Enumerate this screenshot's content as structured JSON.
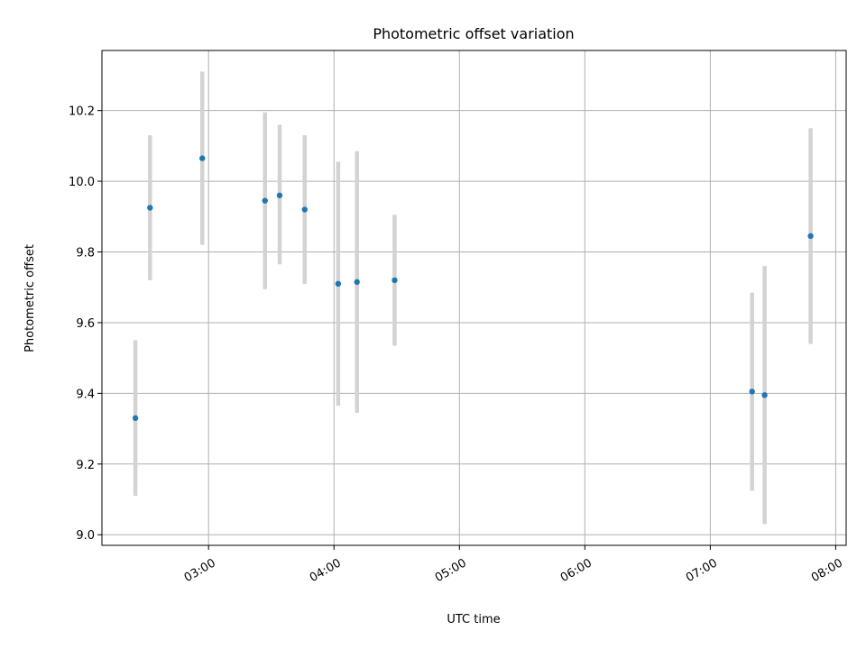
{
  "chart_data": {
    "type": "scatter",
    "title": "Photometric offset variation",
    "xlabel": "UTC time",
    "ylabel": "Photometric offset",
    "x_unit": "hh:mm",
    "xlim": [
      "02:09",
      "08:05"
    ],
    "ylim": [
      8.97,
      10.37
    ],
    "x_ticks": [
      "03:00",
      "04:00",
      "05:00",
      "06:00",
      "07:00",
      "08:00"
    ],
    "y_ticks": [
      "9.0",
      "9.2",
      "9.4",
      "9.6",
      "9.8",
      "10.0",
      "10.2"
    ],
    "grid": true,
    "marker_color": "#1f77b4",
    "errorbar_color": "#d3d3d3",
    "points": [
      {
        "x": "02:25",
        "y": 9.33,
        "ylow": 9.11,
        "yhigh": 9.55
      },
      {
        "x": "02:32",
        "y": 9.925,
        "ylow": 9.72,
        "yhigh": 10.13
      },
      {
        "x": "02:57",
        "y": 10.065,
        "ylow": 9.82,
        "yhigh": 10.31
      },
      {
        "x": "03:27",
        "y": 9.945,
        "ylow": 9.695,
        "yhigh": 10.195
      },
      {
        "x": "03:34",
        "y": 9.96,
        "ylow": 9.765,
        "yhigh": 10.16
      },
      {
        "x": "03:46",
        "y": 9.92,
        "ylow": 9.71,
        "yhigh": 10.13
      },
      {
        "x": "04:02",
        "y": 9.71,
        "ylow": 9.365,
        "yhigh": 10.055
      },
      {
        "x": "04:11",
        "y": 9.715,
        "ylow": 9.345,
        "yhigh": 10.085
      },
      {
        "x": "04:29",
        "y": 9.72,
        "ylow": 9.535,
        "yhigh": 9.905
      },
      {
        "x": "07:20",
        "y": 9.405,
        "ylow": 9.125,
        "yhigh": 9.685
      },
      {
        "x": "07:26",
        "y": 9.395,
        "ylow": 9.03,
        "yhigh": 9.76
      },
      {
        "x": "07:48",
        "y": 9.845,
        "ylow": 9.54,
        "yhigh": 10.15
      }
    ]
  }
}
